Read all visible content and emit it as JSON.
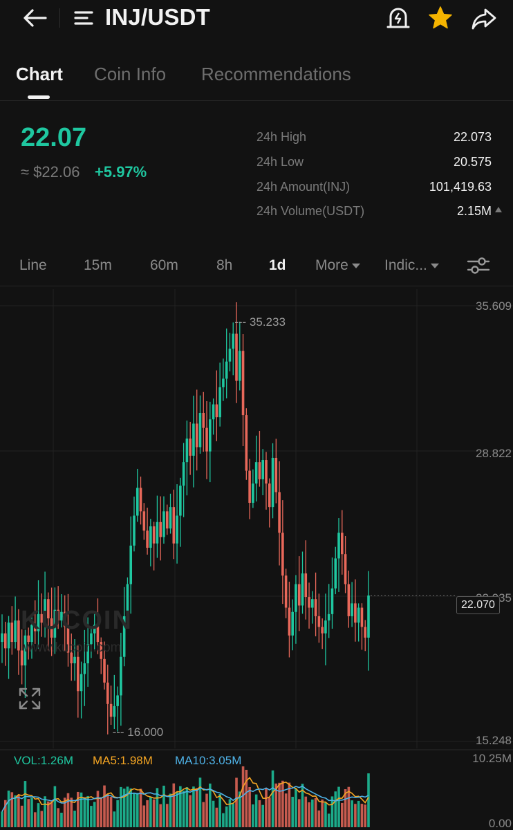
{
  "header": {
    "pair": "INJ/USDT",
    "icons": [
      "back-arrow-icon",
      "menu-list-icon",
      "price-alert-icon",
      "favorite-star-icon",
      "share-icon"
    ],
    "star_color": "#f5b400"
  },
  "tabs": [
    {
      "label": "Chart",
      "active": true
    },
    {
      "label": "Coin Info",
      "active": false
    },
    {
      "label": "Recommendations",
      "active": false
    }
  ],
  "ticker": {
    "last_price": "22.07",
    "fiat_price": "≈ $22.06",
    "change_pct": "+5.97%",
    "up_color": "#1fc7a0"
  },
  "stats": [
    {
      "label": "24h High",
      "value": "22.073"
    },
    {
      "label": "24h Low",
      "value": "20.575"
    },
    {
      "label": "24h Amount(INJ)",
      "value": "101,419.63"
    },
    {
      "label": "24h Volume(USDT)",
      "value": "2.15M"
    }
  ],
  "intervals": [
    {
      "label": "Line",
      "active": false
    },
    {
      "label": "15m",
      "active": false
    },
    {
      "label": "60m",
      "active": false
    },
    {
      "label": "8h",
      "active": false
    },
    {
      "label": "1d",
      "active": true
    },
    {
      "label": "More",
      "active": false,
      "dropdown": true
    },
    {
      "label": "Indic...",
      "active": false,
      "dropdown": true
    }
  ],
  "watermark": {
    "brand": "KUCOIN",
    "url": "www.kucoin.com"
  },
  "chart_data": {
    "type": "candlestick",
    "y_axis_labels": [
      "35.609",
      "28.822",
      "22.035",
      "15.248"
    ],
    "ylim": [
      15.248,
      35.609
    ],
    "current_price": "22.070",
    "high_marker": "35.233",
    "low_marker": "16.000",
    "up_color": "#1fc7a0",
    "down_color": "#e8685a",
    "closes": [
      20.3,
      19.6,
      20.8,
      19.9,
      20.9,
      19.5,
      18.8,
      20.2,
      19.9,
      20.7,
      20.4,
      21.2,
      20.8,
      21.9,
      21.0,
      20.1,
      21.4,
      20.9,
      21.3,
      20.6,
      19.4,
      18.9,
      19.2,
      17.6,
      18.4,
      18.9,
      19.8,
      20.3,
      20.7,
      19.9,
      19.1,
      18.0,
      17.0,
      16.4,
      16.9,
      17.4,
      19.2,
      21.1,
      22.6,
      24.4,
      25.8,
      27.1,
      26.0,
      25.1,
      24.3,
      25.3,
      24.5,
      25.5,
      24.8,
      26.0,
      25.2,
      26.2,
      24.5,
      25.8,
      27.2,
      28.3,
      29.4,
      28.6,
      30.1,
      29.0,
      30.6,
      29.9,
      28.8,
      30.3,
      31.0,
      30.4,
      31.8,
      32.2,
      33.0,
      33.6,
      34.3,
      32.1,
      33.5,
      30.5,
      27.9,
      26.4,
      27.3,
      28.3,
      27.5,
      28.4,
      27.3,
      26.2,
      28.5,
      26.9,
      25.0,
      23.0,
      21.5,
      20.2,
      21.3,
      22.6,
      21.6,
      23.1,
      22.0,
      21.5,
      21.9,
      21.1,
      20.6,
      20.3,
      20.9,
      21.2,
      22.4,
      23.8,
      25.0,
      24.0,
      22.6,
      21.1,
      21.7,
      20.8,
      21.5,
      20.6,
      20.1,
      22.07
    ],
    "volume_axis": [
      "10.25M",
      "0.00"
    ],
    "volume_legend": {
      "vol": "VOL:1.26M",
      "ma5": "MA5:1.98M",
      "ma10": "MA10:3.05M"
    },
    "ma5_color": "#f5a623",
    "ma10_color": "#4fb3e8"
  }
}
